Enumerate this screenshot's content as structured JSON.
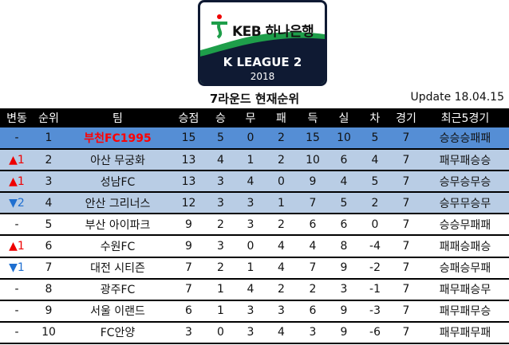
{
  "logo": {
    "sponsor": "KEB 하나은행",
    "league": "K LEAGUE 2",
    "year": "2018"
  },
  "title": "7라운드 현재순위",
  "update": "Update 18.04.15",
  "colors": {
    "leader_row": "#558ed5",
    "highlight_row": "#b9cde5",
    "up": "#e00000",
    "down": "#1f6fd0",
    "leader_team": "#ff0000"
  },
  "headers": [
    "변동",
    "순위",
    "팀",
    "승점",
    "승",
    "무",
    "패",
    "득",
    "실",
    "차",
    "경기",
    "최근5경기"
  ],
  "rows": [
    {
      "change": "-",
      "dir": "none",
      "rank": "1",
      "team": "부천FC1995",
      "pts": "15",
      "w": "5",
      "d": "0",
      "l": "2",
      "gf": "15",
      "ga": "10",
      "gd": "5",
      "gp": "7",
      "recent": "승승승패패"
    },
    {
      "change": "1",
      "dir": "up",
      "rank": "2",
      "team": "아산 무궁화",
      "pts": "13",
      "w": "4",
      "d": "1",
      "l": "2",
      "gf": "10",
      "ga": "6",
      "gd": "4",
      "gp": "7",
      "recent": "패무패승승"
    },
    {
      "change": "1",
      "dir": "up",
      "rank": "3",
      "team": "성남FC",
      "pts": "13",
      "w": "3",
      "d": "4",
      "l": "0",
      "gf": "9",
      "ga": "4",
      "gd": "5",
      "gp": "7",
      "recent": "승무승무승"
    },
    {
      "change": "2",
      "dir": "down",
      "rank": "4",
      "team": "안산 그리너스",
      "pts": "12",
      "w": "3",
      "d": "3",
      "l": "1",
      "gf": "7",
      "ga": "5",
      "gd": "2",
      "gp": "7",
      "recent": "승무무승무"
    },
    {
      "change": "-",
      "dir": "none",
      "rank": "5",
      "team": "부산 아이파크",
      "pts": "9",
      "w": "2",
      "d": "3",
      "l": "2",
      "gf": "6",
      "ga": "6",
      "gd": "0",
      "gp": "7",
      "recent": "승승무패패"
    },
    {
      "change": "1",
      "dir": "up",
      "rank": "6",
      "team": "수원FC",
      "pts": "9",
      "w": "3",
      "d": "0",
      "l": "4",
      "gf": "4",
      "ga": "8",
      "gd": "-4",
      "gp": "7",
      "recent": "패패승패승"
    },
    {
      "change": "1",
      "dir": "down",
      "rank": "7",
      "team": "대전 시티즌",
      "pts": "7",
      "w": "2",
      "d": "1",
      "l": "4",
      "gf": "7",
      "ga": "9",
      "gd": "-2",
      "gp": "7",
      "recent": "승패승무패"
    },
    {
      "change": "-",
      "dir": "none",
      "rank": "8",
      "team": "광주FC",
      "pts": "7",
      "w": "1",
      "d": "4",
      "l": "2",
      "gf": "2",
      "ga": "3",
      "gd": "-1",
      "gp": "7",
      "recent": "패무패승무"
    },
    {
      "change": "-",
      "dir": "none",
      "rank": "9",
      "team": "서울 이랜드",
      "pts": "6",
      "w": "1",
      "d": "3",
      "l": "3",
      "gf": "6",
      "ga": "9",
      "gd": "-3",
      "gp": "7",
      "recent": "패무패무승"
    },
    {
      "change": "-",
      "dir": "none",
      "rank": "10",
      "team": "FC안양",
      "pts": "3",
      "w": "0",
      "d": "3",
      "l": "4",
      "gf": "3",
      "ga": "9",
      "gd": "-6",
      "gp": "7",
      "recent": "패무패무패"
    }
  ]
}
